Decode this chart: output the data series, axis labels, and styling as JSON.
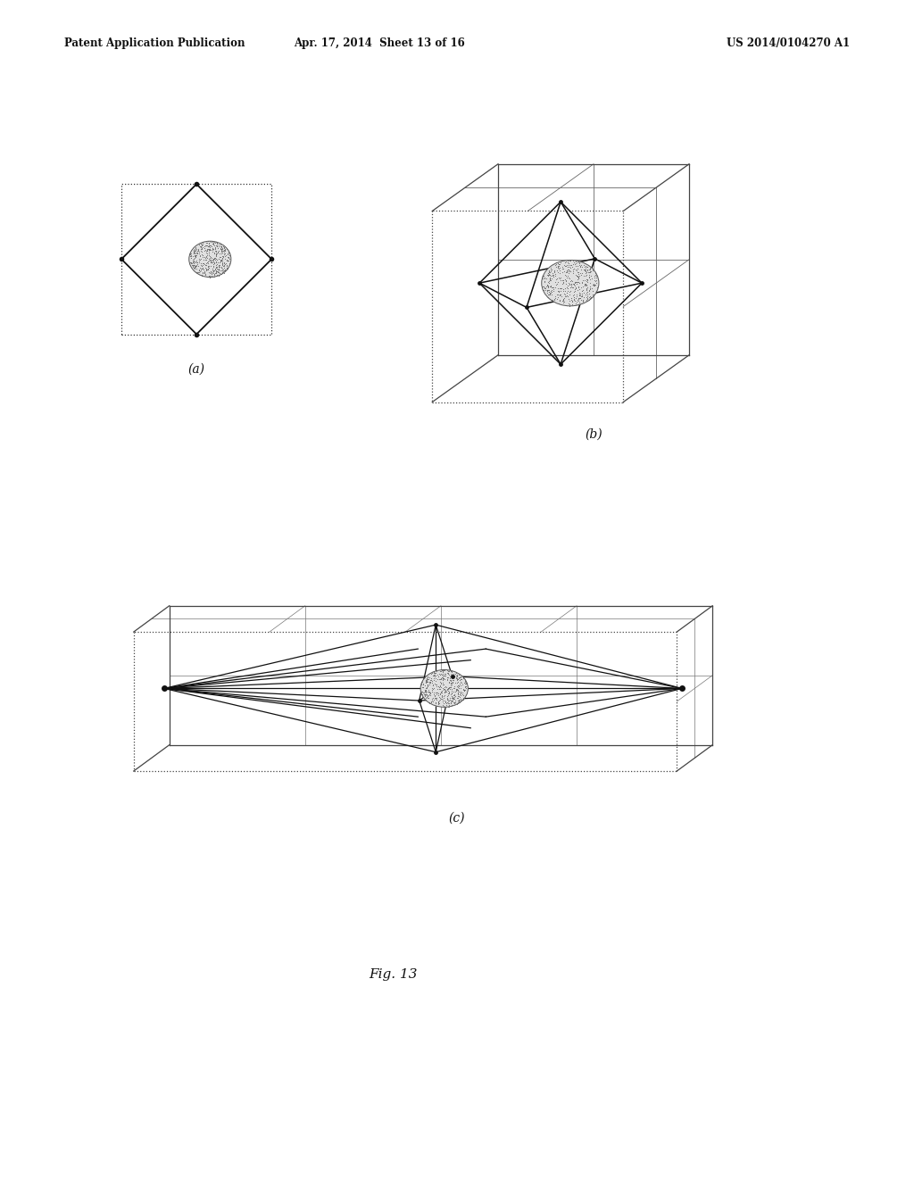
{
  "bg_color": "#ffffff",
  "header_left": "Patent Application Publication",
  "header_mid": "Apr. 17, 2014  Sheet 13 of 16",
  "header_right": "US 2014/0104270 A1",
  "fig_label": "Fig. 13",
  "label_a": "(a)",
  "label_b": "(b)",
  "label_c": "(c)",
  "header_fontsize": 8.5,
  "label_fontsize": 10,
  "fig13_fontsize": 11
}
